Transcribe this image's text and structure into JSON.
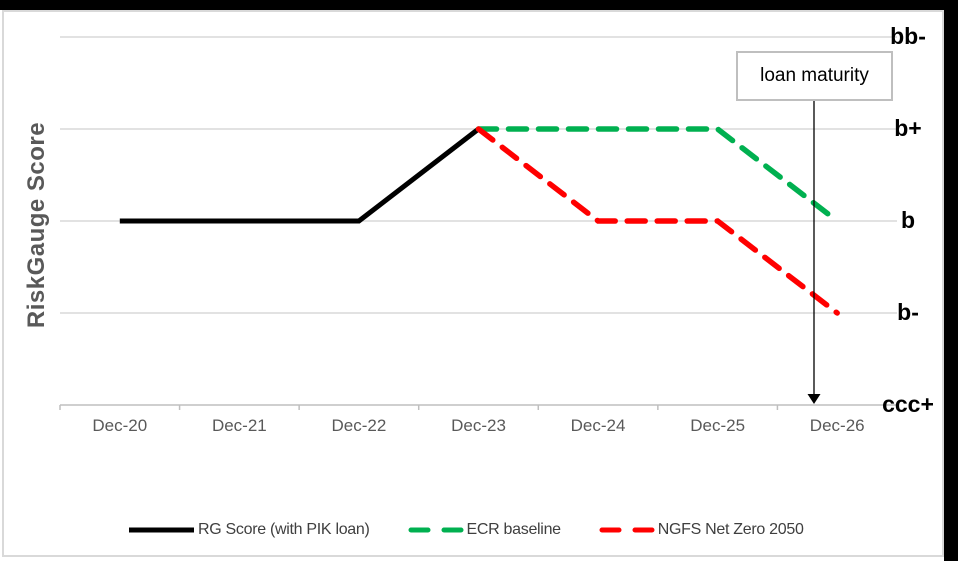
{
  "chart_data": {
    "type": "line",
    "title": "",
    "ylabel": "RiskGauge Score",
    "categories": [
      "Dec-20",
      "Dec-21",
      "Dec-22",
      "Dec-23",
      "Dec-24",
      "Dec-25",
      "Dec-26"
    ],
    "y_tick_labels_top_to_bottom": [
      "bb-",
      "b+",
      "b",
      "b-",
      "ccc+"
    ],
    "rating_scale_bottom_to_top": [
      "ccc+",
      "b-",
      "b",
      "b+",
      "bb-"
    ],
    "grid": "horizontal",
    "legend_position": "bottom",
    "gridline_color": "#d9d9d9",
    "axis_color": "#bfbfbf",
    "tick_label_color": "#595959",
    "series": [
      {
        "name": "RG Score (with PIK loan)",
        "color": "#000000",
        "dash": "solid",
        "values": [
          "b",
          "b",
          "b",
          "b+",
          null,
          null,
          null
        ]
      },
      {
        "name": "ECR baseline",
        "color": "#00B050",
        "dash": "dashed",
        "values": [
          null,
          null,
          null,
          "b+",
          "b+",
          "b+",
          "b"
        ]
      },
      {
        "name": "NGFS Net Zero 2050",
        "color": "#FF0000",
        "dash": "dashed",
        "values": [
          null,
          null,
          null,
          "b+",
          "b",
          "b",
          "b-"
        ]
      }
    ],
    "annotation": {
      "text": "loan maturity",
      "arrow_points_to_category": "Dec-26",
      "arrow_points_to": "x-axis"
    }
  }
}
